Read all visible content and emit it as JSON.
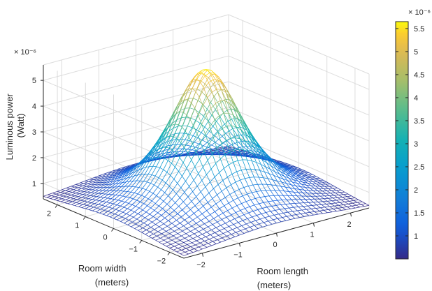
{
  "chart_data": {
    "type": "surface",
    "title": "",
    "xlabel": [
      "Room length",
      "(meters)"
    ],
    "ylabel": [
      "Room width",
      "(meters)"
    ],
    "zlabel": [
      "Luminous power",
      "(Watt)"
    ],
    "z_exponent_label": "× 10⁻⁶",
    "colorbar_exponent_label": "× 10⁻⁶",
    "xlim": [
      -2.5,
      2.5
    ],
    "ylim": [
      -2.5,
      2.5
    ],
    "zlim": [
      0.4,
      5.6
    ],
    "x_ticks": [
      -2,
      -1,
      0,
      1,
      2
    ],
    "y_ticks": [
      -2,
      -1,
      0,
      1,
      2
    ],
    "z_ticks": [
      1,
      2,
      3,
      4,
      5
    ],
    "colorbar_ticks": [
      1,
      1.5,
      2,
      2.5,
      3,
      3.5,
      4,
      4.5,
      5,
      5.5
    ],
    "colorbar_range": [
      0.5,
      5.65
    ],
    "colormap": "parula",
    "grid": true,
    "surface": {
      "function": "peak at room center, falling off toward corners",
      "peak_value": 5.6,
      "corner_value": 0.5,
      "mesh_count": 41
    }
  }
}
